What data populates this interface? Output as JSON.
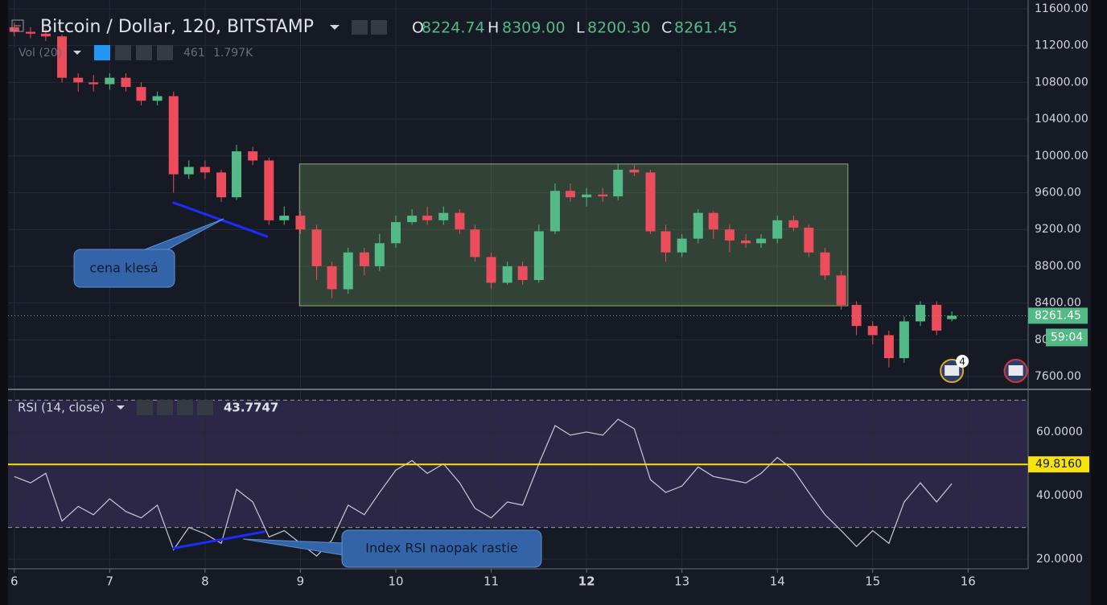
{
  "chart_data": [
    {
      "type": "candlestick",
      "title": "Bitcoin / Dollar, 120, BITSTAMP",
      "ohlc_keys": [
        "O",
        "H",
        "L",
        "C"
      ],
      "ohlc_labels": [
        "8224.74",
        "8309.00",
        "8200.30",
        "8261.45"
      ],
      "volume_title": "Vol (20)",
      "volume_labels": [
        "461",
        "1.797K"
      ],
      "countdown": "59:04",
      "up_color": "#53b987",
      "down_color": "#eb4d5c",
      "x": [
        6,
        6.17,
        6.33,
        6.5,
        6.67,
        6.83,
        7,
        7.17,
        7.33,
        7.5,
        7.67,
        7.83,
        8,
        8.17,
        8.33,
        8.5,
        8.67,
        8.83,
        9,
        9.17,
        9.33,
        9.5,
        9.67,
        9.83,
        10,
        10.17,
        10.33,
        10.5,
        10.67,
        10.83,
        11,
        11.17,
        11.33,
        11.5,
        11.67,
        11.83,
        12,
        12.17,
        12.33,
        12.5,
        12.67,
        12.83,
        13,
        13.17,
        13.33,
        13.5,
        13.67,
        13.83,
        14,
        14.17,
        14.33,
        14.5,
        14.67,
        14.83,
        15,
        15.17,
        15.33,
        15.5,
        15.67,
        15.83
      ],
      "open": [
        11400,
        11350,
        11330,
        11300,
        10850,
        10800,
        10780,
        10850,
        10750,
        10600,
        10650,
        9800,
        9880,
        9820,
        9550,
        10050,
        9950,
        9300,
        9350,
        9200,
        8800,
        8550,
        8950,
        8800,
        9050,
        9280,
        9350,
        9300,
        9380,
        9200,
        8900,
        8620,
        8800,
        8650,
        9180,
        9620,
        9550,
        9580,
        9560,
        9850,
        9820,
        9180,
        8950,
        9100,
        9380,
        9200,
        9080,
        9050,
        9100,
        9300,
        9220,
        8950,
        8700,
        8380,
        8150,
        8050,
        7800,
        8200,
        8380,
        8224.74
      ],
      "high": [
        11450,
        11400,
        11380,
        11320,
        10900,
        10880,
        10900,
        10900,
        10800,
        10700,
        10700,
        9950,
        9950,
        9850,
        10120,
        10100,
        9980,
        9450,
        9400,
        9250,
        8850,
        9000,
        9000,
        9150,
        9350,
        9420,
        9450,
        9450,
        9420,
        9250,
        8950,
        8850,
        8850,
        9250,
        9700,
        9700,
        9650,
        9650,
        9920,
        9900,
        9850,
        9250,
        9150,
        9420,
        9400,
        9250,
        9150,
        9150,
        9350,
        9350,
        9250,
        9000,
        8750,
        8420,
        8200,
        8100,
        8250,
        8420,
        8420,
        8309
      ],
      "low": [
        11300,
        11280,
        11250,
        10800,
        10700,
        10700,
        10720,
        10700,
        10550,
        10550,
        9600,
        9750,
        9750,
        9500,
        9520,
        9900,
        9250,
        9250,
        9150,
        8650,
        8450,
        8500,
        8700,
        8750,
        9000,
        9250,
        9250,
        9250,
        9150,
        8850,
        8550,
        8600,
        8600,
        8620,
        9150,
        9500,
        9450,
        9500,
        9520,
        9780,
        9150,
        8850,
        8900,
        9050,
        9100,
        8950,
        9000,
        9000,
        9050,
        9180,
        8900,
        8650,
        8330,
        8050,
        7950,
        7700,
        7750,
        8150,
        8050,
        8200.3
      ],
      "close": [
        11350,
        11330,
        11300,
        10850,
        10800,
        10780,
        10850,
        10750,
        10600,
        10650,
        9800,
        9880,
        9820,
        9550,
        10050,
        9950,
        9300,
        9350,
        9200,
        8800,
        8550,
        8950,
        8800,
        9050,
        9280,
        9350,
        9300,
        9380,
        9200,
        8900,
        8620,
        8800,
        8650,
        9180,
        9620,
        9550,
        9580,
        9560,
        9850,
        9820,
        9180,
        8950,
        9100,
        9380,
        9200,
        9080,
        9050,
        9100,
        9300,
        9220,
        8950,
        8700,
        8380,
        8150,
        8050,
        7800,
        8200,
        8380,
        8100,
        8261.45
      ],
      "xlim": [
        5.85,
        16.63
      ],
      "xticks": [
        6,
        7,
        8,
        9,
        10,
        11,
        12,
        13,
        14,
        15,
        16
      ],
      "bold_xtick": 12,
      "ylim": [
        7469,
        11696
      ],
      "yticks": [
        {
          "value": 7600,
          "label": "7600.00"
        },
        {
          "value": 8000,
          "label": "8000.00"
        },
        {
          "value": 8400,
          "label": "8400.00"
        },
        {
          "value": 8800,
          "label": "8800.00"
        },
        {
          "value": 9200,
          "label": "9200.00"
        },
        {
          "value": 9600,
          "label": "9600.00"
        },
        {
          "value": 10000,
          "label": "10000.00"
        },
        {
          "value": 10400,
          "label": "10400.00"
        },
        {
          "value": 10800,
          "label": "10800.00"
        },
        {
          "value": 11200,
          "label": "11200.00"
        },
        {
          "value": 11600,
          "label": "11600.00"
        }
      ],
      "grid": true,
      "range_box": {
        "x": [
          8.99,
          14.74
        ],
        "y": [
          8370,
          9912
        ]
      },
      "trendline": {
        "x": [
          7.66,
          8.66
        ],
        "y": [
          9495,
          9120
        ]
      },
      "annotation": "cena klesá",
      "events": [
        {
          "x": 15.83,
          "label": "4"
        },
        {
          "x": 16.5
        }
      ]
    },
    {
      "type": "line",
      "title": "RSI (14, close)",
      "last_label": "43.7747",
      "color": "#c9c9d6",
      "values": [
        46,
        44,
        47,
        32,
        36.6,
        34,
        39,
        35,
        33,
        37,
        23,
        30,
        28,
        25,
        42,
        38,
        27,
        29,
        25,
        21,
        26,
        37,
        34,
        41,
        48,
        51,
        47,
        50,
        44,
        36,
        33,
        38,
        37,
        50,
        62,
        59,
        60,
        59,
        64,
        61,
        45,
        41,
        43,
        49,
        46,
        45,
        44,
        47,
        52,
        48,
        41,
        34,
        29,
        24,
        29,
        25,
        38,
        44,
        38,
        43.7747
      ],
      "ylim": [
        17,
        70.6
      ],
      "yticks": [
        {
          "value": 20,
          "label": "20.0000"
        },
        {
          "value": 40,
          "label": "40.0000"
        },
        {
          "value": 60,
          "label": "60.0000"
        }
      ],
      "levels": [
        70,
        30
      ],
      "midline": {
        "value": 49.816,
        "label": "49.8160"
      },
      "trendline": {
        "x": [
          7.66,
          8.63
        ],
        "y": [
          23.4,
          28.7
        ]
      },
      "annotation": "Index RSI naopak rastie"
    }
  ]
}
